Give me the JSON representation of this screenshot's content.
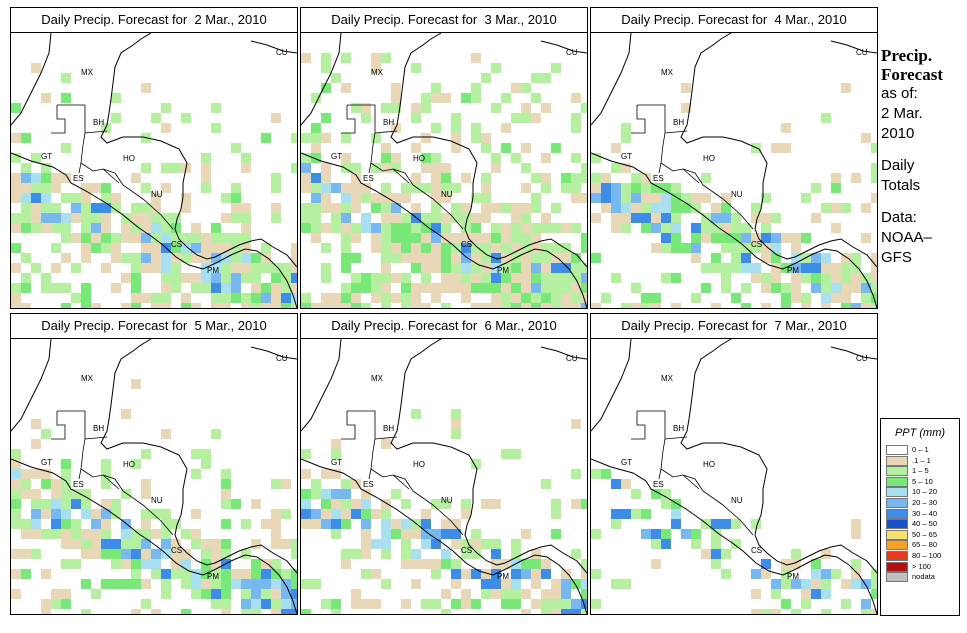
{
  "panels": [
    {
      "title": "Daily Precip. Forecast for  2 Mar., 2010",
      "seed": 11,
      "wet": 0.55,
      "band": 0.9
    },
    {
      "title": "Daily Precip. Forecast for  3 Mar., 2010",
      "seed": 23,
      "wet": 0.75,
      "band": 0.7
    },
    {
      "title": "Daily Precip. Forecast for  4 Mar., 2010",
      "seed": 37,
      "wet": 0.4,
      "band": 1.0
    },
    {
      "title": "Daily Precip. Forecast for  5 Mar., 2010",
      "seed": 41,
      "wet": 0.45,
      "band": 1.0
    },
    {
      "title": "Daily Precip. Forecast for  6 Mar., 2010",
      "seed": 53,
      "wet": 0.35,
      "band": 0.8
    },
    {
      "title": "Daily Precip. Forecast for  7 Mar., 2010",
      "seed": 67,
      "wet": 0.2,
      "band": 0.4
    }
  ],
  "country_labels": [
    "MX",
    "BH",
    "GT",
    "HO",
    "ES",
    "NU",
    "CS",
    "PM",
    "CU"
  ],
  "sidebar": {
    "title_line1": "Precip.",
    "title_line2": "Forecast",
    "asof_line1": "as of:",
    "asof_line2": "2 Mar.",
    "asof_line3": "2010",
    "totals_line1": "Daily",
    "totals_line2": "Totals",
    "data_line1": "Data:",
    "data_line2": "NOAA–",
    "data_line3": "GFS"
  },
  "legend": {
    "title": "PPT (mm)",
    "items": [
      {
        "label": "0 – 1",
        "color": "#ffffff"
      },
      {
        "label": ".1 – 1",
        "color": "#e8d8b8"
      },
      {
        "label": "1 – 5",
        "color": "#b4f0a0"
      },
      {
        "label": "5 – 10",
        "color": "#78e878"
      },
      {
        "label": "10 – 20",
        "color": "#a8e0f0"
      },
      {
        "label": "20 – 30",
        "color": "#78b8f0"
      },
      {
        "label": "30 – 40",
        "color": "#3c8ce8"
      },
      {
        "label": "40 – 50",
        "color": "#1450d0"
      },
      {
        "label": "50 – 65",
        "color": "#f8e070"
      },
      {
        "label": "65 – 80",
        "color": "#f8a020"
      },
      {
        "label": "80 – 100",
        "color": "#e83c1c"
      },
      {
        "label": "> 100",
        "color": "#b01010"
      },
      {
        "label": "nodata",
        "color": "#c0c0c0"
      }
    ]
  }
}
